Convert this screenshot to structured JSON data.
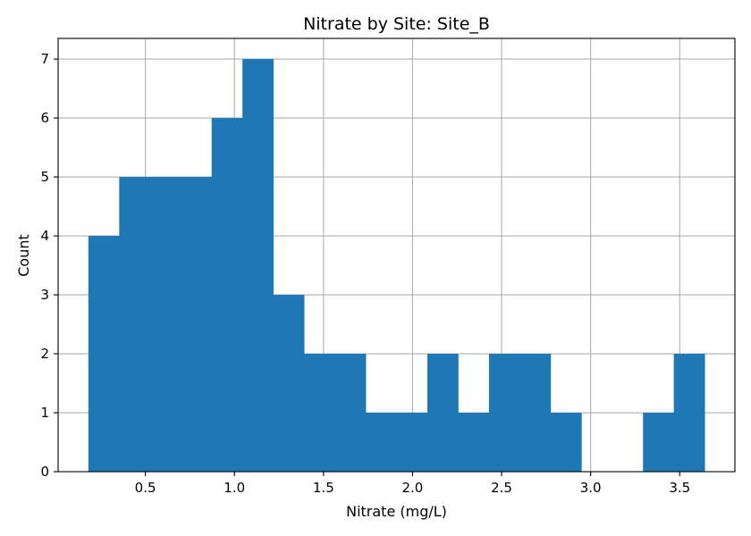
{
  "chart_data": {
    "type": "bar",
    "subtype": "histogram",
    "title": "Nitrate by Site: Site_B",
    "xlabel": "Nitrate (mg/L)",
    "ylabel": "Count",
    "bin_edges": [
      0.18,
      0.353,
      0.526,
      0.699,
      0.872,
      1.045,
      1.218,
      1.391,
      1.564,
      1.737,
      1.91,
      2.083,
      2.256,
      2.429,
      2.602,
      2.775,
      2.948,
      3.121,
      3.294,
      3.467,
      3.64
    ],
    "counts": [
      4,
      5,
      5,
      5,
      6,
      7,
      3,
      2,
      2,
      1,
      1,
      2,
      1,
      2,
      2,
      1,
      0,
      0,
      1,
      2
    ],
    "xlim": [
      0.01,
      3.81
    ],
    "ylim": [
      0,
      7.35
    ],
    "xticks": [
      0.5,
      1.0,
      1.5,
      2.0,
      2.5,
      3.0,
      3.5
    ],
    "xtick_labels": [
      "0.5",
      "1.0",
      "1.5",
      "2.0",
      "2.5",
      "3.0",
      "3.5"
    ],
    "yticks": [
      0,
      1,
      2,
      3,
      4,
      5,
      6,
      7
    ],
    "ytick_labels": [
      "0",
      "1",
      "2",
      "3",
      "4",
      "5",
      "6",
      "7"
    ],
    "grid": true,
    "legend": "none",
    "colors": {
      "bar": "#1f77b4",
      "grid": "#b0b0b0",
      "axis": "#000000"
    }
  }
}
